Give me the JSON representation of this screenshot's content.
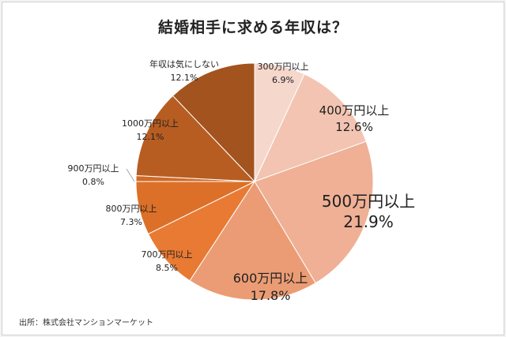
{
  "chart_data": {
    "type": "pie",
    "title": "結婚相手に求める年収は？",
    "slices": [
      {
        "label": "300万円以上",
        "value": 6.9,
        "value_text": "6.9%",
        "color": "#f5d7cc"
      },
      {
        "label": "400万円以上",
        "value": 12.6,
        "value_text": "12.6%",
        "color": "#f3c4b2"
      },
      {
        "label": "500万円以上",
        "value": 21.9,
        "value_text": "21.9%",
        "color": "#efb095"
      },
      {
        "label": "600万円以上",
        "value": 17.8,
        "value_text": "17.8%",
        "color": "#eb9c74"
      },
      {
        "label": "700万円以上",
        "value": 8.5,
        "value_text": "8.5%",
        "color": "#e97a33"
      },
      {
        "label": "800万円以上",
        "value": 7.3,
        "value_text": "7.3%",
        "color": "#dc7028"
      },
      {
        "label": "900万円以上",
        "value": 0.8,
        "value_text": "0.8%",
        "color": "#d06a27"
      },
      {
        "label": "1000万円以上",
        "value": 12.1,
        "value_text": "12.1%",
        "color": "#b85d22"
      },
      {
        "label": "年収は気にしない",
        "value": 12.1,
        "value_text": "12.1%",
        "color": "#a3531e"
      }
    ],
    "legend": "none"
  },
  "source": "出所：株式会社マンションマーケット"
}
